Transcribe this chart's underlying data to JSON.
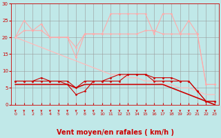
{
  "background_color": "#c0e8e8",
  "grid_color": "#999999",
  "xlabel": "Vent moyen/en rafales ( km/h )",
  "xlabel_color": "#cc0000",
  "xlabel_fontsize": 7,
  "tick_color": "#cc0000",
  "x_ticks": [
    0,
    1,
    2,
    3,
    4,
    5,
    6,
    7,
    8,
    9,
    10,
    11,
    12,
    13,
    14,
    15,
    16,
    17,
    18,
    19,
    20,
    21,
    22,
    23
  ],
  "ylim": [
    0,
    30
  ],
  "xlim": [
    -0.5,
    23.5
  ],
  "yticks": [
    0,
    5,
    10,
    15,
    20,
    25,
    30
  ],
  "ytick_labels": [
    "0",
    "5",
    "10",
    "15",
    "20",
    "25",
    "30"
  ],
  "series": [
    {
      "name": "rafales_light_peak",
      "color": "#ffaaaa",
      "lw": 0.8,
      "marker": "D",
      "markersize": 1.5,
      "y": [
        20,
        25,
        22,
        24,
        20,
        20,
        20,
        14,
        21,
        21,
        21,
        27,
        27,
        27,
        27,
        27,
        21,
        27,
        27,
        21,
        25,
        21,
        6,
        6
      ]
    },
    {
      "name": "rafales_light_flat",
      "color": "#ffaaaa",
      "lw": 0.8,
      "marker": "D",
      "markersize": 1.5,
      "y": [
        20,
        22,
        22,
        22,
        20,
        20,
        20,
        17,
        21,
        21,
        21,
        21,
        21,
        21,
        21,
        22,
        22,
        21,
        21,
        21,
        21,
        21,
        6,
        6
      ]
    },
    {
      "name": "vent_diag",
      "color": "#ffbbbb",
      "lw": 0.9,
      "marker": null,
      "markersize": 0,
      "y": [
        20,
        19,
        18,
        17,
        16,
        15,
        14,
        13,
        12,
        11,
        10,
        9,
        9,
        8,
        8,
        7,
        7,
        6,
        6,
        5,
        5,
        4,
        3,
        3
      ]
    },
    {
      "name": "vent_fort_peak",
      "color": "#cc0000",
      "lw": 0.8,
      "marker": "D",
      "markersize": 1.5,
      "y": [
        7,
        7,
        7,
        8,
        7,
        7,
        6,
        3,
        4,
        7,
        7,
        8,
        9,
        9,
        9,
        9,
        8,
        8,
        8,
        7,
        7,
        4,
        1,
        1
      ]
    },
    {
      "name": "vent_fort_flat",
      "color": "#cc0000",
      "lw": 0.8,
      "marker": "D",
      "markersize": 1.5,
      "y": [
        7,
        7,
        7,
        7,
        7,
        7,
        7,
        5,
        7,
        7,
        7,
        7,
        7,
        9,
        9,
        9,
        7,
        7,
        7,
        7,
        7,
        4,
        1,
        1
      ]
    },
    {
      "name": "vent_moyen_dark",
      "color": "#cc0000",
      "lw": 1.2,
      "marker": null,
      "markersize": 0,
      "y": [
        6,
        6,
        6,
        6,
        6,
        6,
        6,
        5,
        6,
        6,
        6,
        6,
        6,
        6,
        6,
        6,
        6,
        6,
        5,
        4,
        3,
        2,
        1,
        0
      ]
    }
  ],
  "arrow_color": "#cc0000"
}
